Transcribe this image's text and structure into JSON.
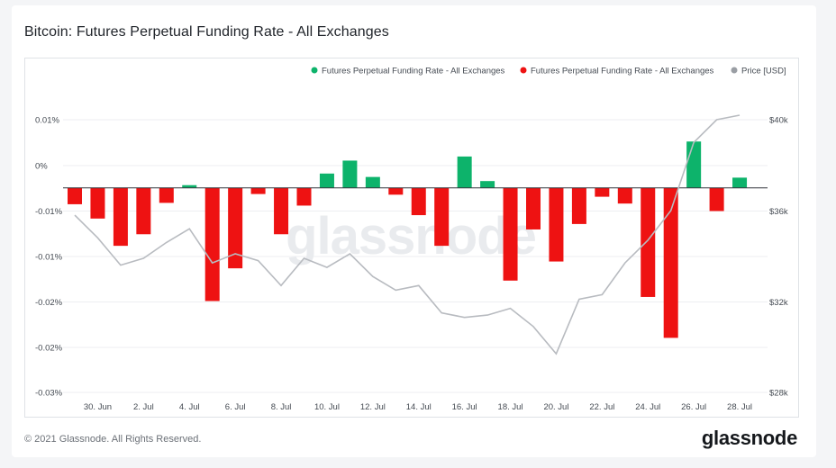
{
  "title": "Bitcoin: Futures Perpetual Funding Rate - All Exchanges",
  "footer": {
    "copyright": "© 2021 Glassnode. All Rights Reserved.",
    "logo": "glassnode"
  },
  "watermark": "glassnode",
  "colors": {
    "positive": "#0db36b",
    "negative": "#ee1212",
    "price": "#b8bbc0",
    "legend_price_dot": "#9a9ea4"
  },
  "chart_data": {
    "type": "bar",
    "title": "Bitcoin: Futures Perpetual Funding Rate - All Exchanges",
    "legend": [
      {
        "label": "Futures Perpetual Funding Rate - All Exchanges",
        "color": "#0db36b"
      },
      {
        "label": "Futures Perpetual Funding Rate - All Exchanges",
        "color": "#ee1212"
      },
      {
        "label": "Price [USD]",
        "color": "#9a9ea4"
      }
    ],
    "legend_position": "top-right",
    "x_ticks": [
      "30. Jun",
      "2. Jul",
      "4. Jul",
      "6. Jul",
      "8. Jul",
      "10. Jul",
      "12. Jul",
      "14. Jul",
      "16. Jul",
      "18. Jul",
      "20. Jul",
      "22. Jul",
      "24. Jul",
      "26. Jul",
      "28. Jul"
    ],
    "y_left_ticks": [
      "0.01%",
      "0%",
      "-0.01%",
      "-0.01%",
      "-0.02%",
      "-0.02%",
      "-0.03%"
    ],
    "y_left_range": [
      -0.03,
      0.0125
    ],
    "y_right_ticks": [
      "$40k",
      "$36k",
      "$32k",
      "$28k"
    ],
    "y_right_range": [
      28000,
      41000
    ],
    "grid": true,
    "dates": [
      "29. Jun",
      "30. Jun",
      "1. Jul",
      "2. Jul",
      "3. Jul",
      "4. Jul",
      "5. Jul",
      "6. Jul",
      "7. Jul",
      "8. Jul",
      "9. Jul",
      "10. Jul",
      "11. Jul",
      "12. Jul",
      "13. Jul",
      "14. Jul",
      "15. Jul",
      "16. Jul",
      "17. Jul",
      "18. Jul",
      "19. Jul",
      "20. Jul",
      "21. Jul",
      "22. Jul",
      "23. Jul",
      "24. Jul",
      "25. Jul",
      "26. Jul",
      "27. Jul",
      "28. Jul"
    ],
    "funding_rate": [
      -0.0024,
      -0.0045,
      -0.0085,
      -0.0068,
      -0.0022,
      0.0004,
      -0.0166,
      -0.0118,
      -0.0009,
      -0.0068,
      -0.0026,
      0.0021,
      0.004,
      0.0016,
      -0.001,
      -0.004,
      -0.0085,
      0.0046,
      0.001,
      -0.0136,
      -0.0061,
      -0.0108,
      -0.0053,
      -0.0013,
      -0.0023,
      -0.016,
      -0.022,
      0.0068,
      -0.0034,
      0.0015
    ],
    "price": [
      35800,
      34800,
      33600,
      33900,
      34600,
      35200,
      33700,
      34100,
      33800,
      32700,
      33900,
      33500,
      34100,
      33100,
      32500,
      32700,
      31500,
      31300,
      31400,
      31700,
      30900,
      29700,
      32100,
      32300,
      33700,
      34700,
      36000,
      39000,
      40000,
      40200
    ]
  }
}
